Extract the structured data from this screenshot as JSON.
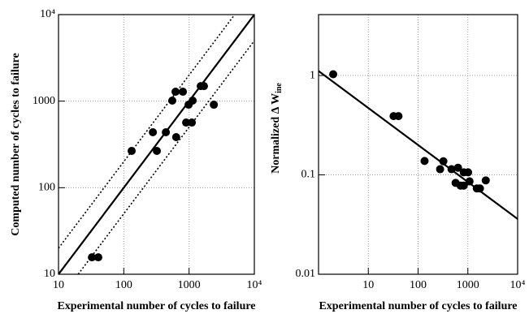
{
  "chart_data": [
    {
      "type": "scatter",
      "xlabel": "Experimental number of cycles to failure",
      "ylabel": "Computed number of cycles to failure",
      "xscale": "log",
      "yscale": "log",
      "grid": true,
      "color": "#000000",
      "xlim": [
        10,
        10000
      ],
      "ylim": [
        10,
        10000
      ],
      "xticks": [
        10,
        100,
        1000,
        {
          "value": 10000,
          "label": "10⁴"
        }
      ],
      "yticks": [
        10,
        100,
        1000,
        {
          "value": 10000,
          "label": "10⁴"
        }
      ],
      "x": [
        32.5,
        40.7,
        132,
        321,
        279,
        441,
        553,
        621,
        804,
        635,
        902,
        1102,
        984,
        1135,
        1510,
        1690,
        2395
      ],
      "values": [
        15.7,
        15.7,
        266,
        266,
        437,
        437,
        1014,
        1285,
        1285,
        384,
        566,
        566,
        910,
        1014,
        1493,
        1493,
        910
      ],
      "lines": [
        {
          "style": "solid",
          "x": [
            10,
            10000
          ],
          "values": [
            10,
            10000
          ]
        },
        {
          "style": "dotted",
          "x": [
            10,
            5000
          ],
          "values": [
            20,
            10000
          ]
        },
        {
          "style": "dotted",
          "x": [
            20,
            10000
          ],
          "values": [
            10,
            5000
          ]
        }
      ]
    },
    {
      "type": "scatter",
      "xlabel": "Experimental number of cycles to failure",
      "ylabel": "Normalized Δ W",
      "ylabel_sub": "ine",
      "xscale": "log",
      "yscale": "log",
      "grid": true,
      "color": "#000000",
      "xlim": [
        1,
        10000
      ],
      "ylim": [
        0.01,
        4.1
      ],
      "xticks": [
        10,
        100,
        1000,
        {
          "value": 10000,
          "label": "10⁴"
        }
      ],
      "yticks": [
        0.01,
        0.1,
        1
      ],
      "x": [
        1.97,
        32.2,
        40.4,
        135,
        277,
        322,
        470,
        567,
        635,
        712,
        828,
        828,
        1010,
        1080,
        1514,
        1750,
        2290
      ],
      "values": [
        1.03,
        0.39,
        0.39,
        0.138,
        0.114,
        0.137,
        0.114,
        0.083,
        0.118,
        0.078,
        0.078,
        0.106,
        0.106,
        0.086,
        0.073,
        0.073,
        0.088
      ],
      "lines": [
        {
          "style": "solid",
          "x": [
            1,
            10000
          ],
          "values": [
            1.11,
            0.036
          ]
        }
      ]
    }
  ]
}
